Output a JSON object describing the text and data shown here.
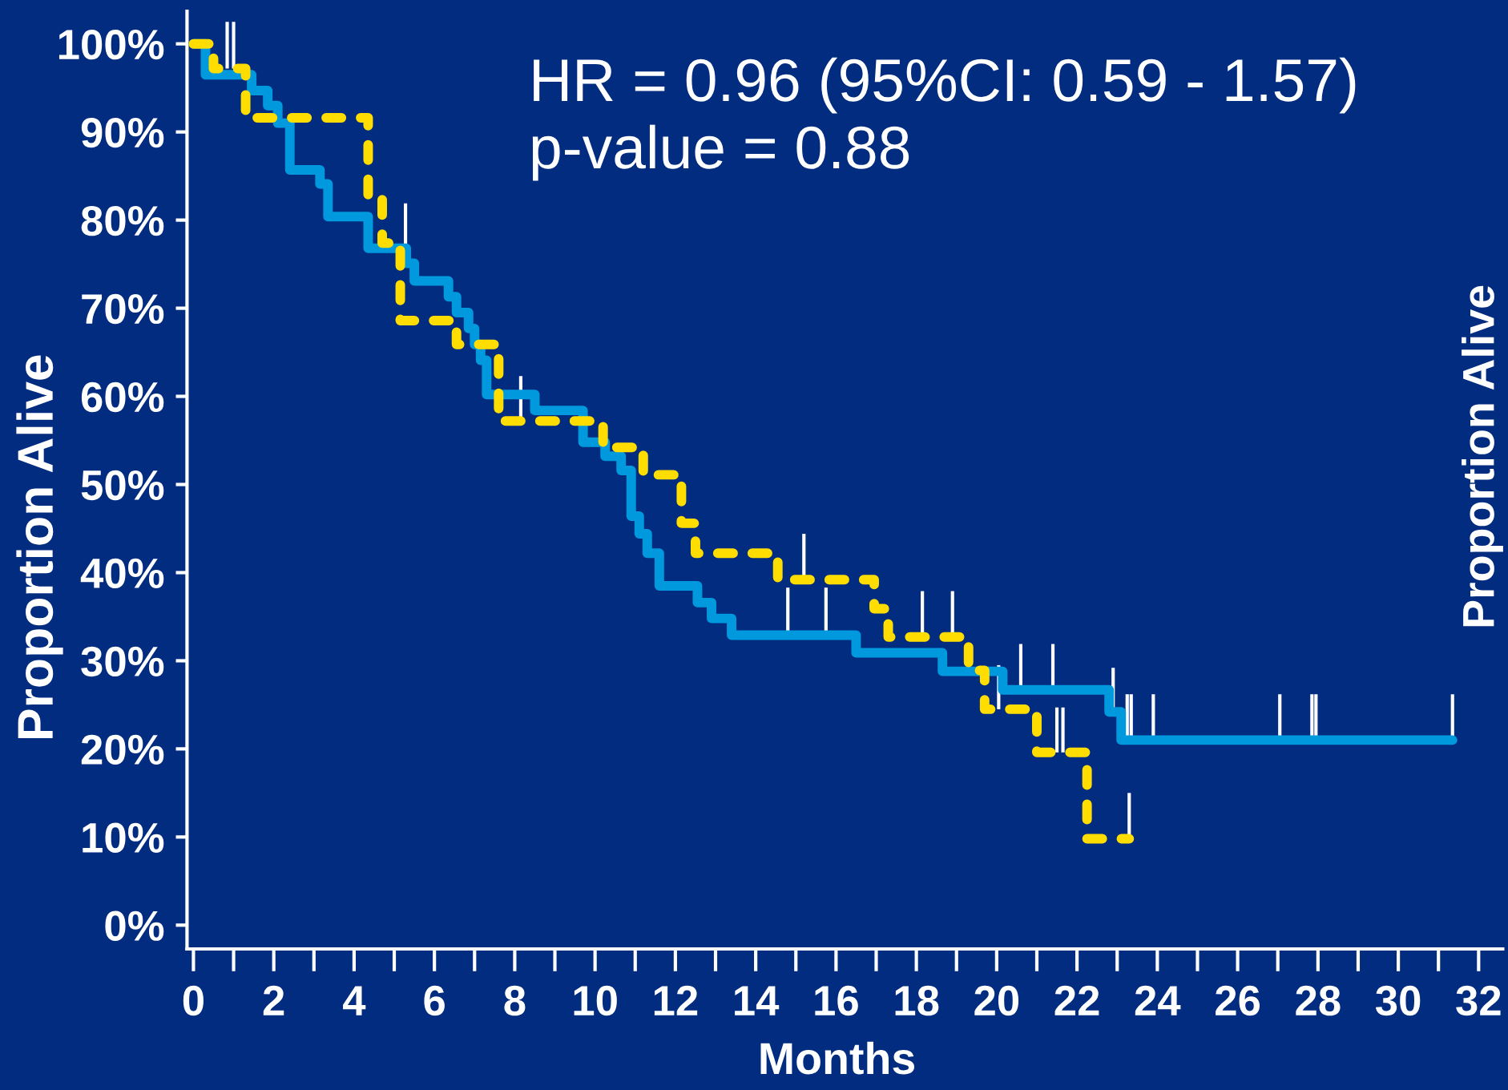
{
  "chart_data": {
    "type": "step",
    "xlabel": "Months",
    "ylabel": "Proportion Alive",
    "annotations": [
      "HR = 0.96 (95%CI: 0.59 - 1.57)",
      "p-value = 0.88",
      "Proportion Alive"
    ],
    "xlim": [
      -0.16,
      32.6
    ],
    "xticks": [
      0,
      {
        "value": 1,
        "label": null
      },
      2,
      {
        "value": 3,
        "label": null
      },
      4,
      {
        "value": 5,
        "label": null
      },
      6,
      {
        "value": 7,
        "label": null
      },
      8,
      {
        "value": 9,
        "label": null
      },
      10,
      {
        "value": 11,
        "label": null
      },
      12,
      {
        "value": 13,
        "label": null
      },
      14,
      {
        "value": 15,
        "label": null
      },
      16,
      {
        "value": 17,
        "label": null
      },
      18,
      {
        "value": 19,
        "label": null
      },
      20,
      {
        "value": 21,
        "label": null
      },
      22,
      {
        "value": 23,
        "label": null
      },
      24,
      {
        "value": 25,
        "label": null
      },
      26,
      {
        "value": 27,
        "label": null
      },
      28,
      {
        "value": 29,
        "label": null
      },
      30,
      {
        "value": 31,
        "label": null
      },
      32
    ],
    "ylim": [
      -2.7,
      103.7
    ],
    "yticks": [
      {
        "value": 0,
        "label": "0%"
      },
      {
        "value": 10,
        "label": "10%"
      },
      {
        "value": 20,
        "label": "20%"
      },
      {
        "value": 30,
        "label": "30%"
      },
      {
        "value": 40,
        "label": "40%"
      },
      {
        "value": 50,
        "label": "50%"
      },
      {
        "value": 60,
        "label": "60%"
      },
      {
        "value": 70,
        "label": "70%"
      },
      {
        "value": 80,
        "label": "80%"
      },
      {
        "value": 90,
        "label": "90%"
      },
      {
        "value": 100,
        "label": "100%"
      }
    ],
    "series": [
      {
        "color": "#0099dd",
        "line_style": "solid",
        "x": [
          0,
          0.3,
          1.45,
          1.85,
          2.1,
          2.4,
          3.15,
          3.35,
          4.35,
          5.28,
          5.3,
          5.5,
          6.35,
          6.55,
          6.85,
          7.0,
          7.15,
          7.3,
          8.5,
          9.7,
          10.25,
          10.65,
          10.9,
          11.1,
          11.3,
          11.6,
          12.55,
          12.9,
          13.4,
          14.8,
          15.75,
          16.5,
          18.65,
          20.15,
          20.6,
          21.4,
          22.8,
          22.9,
          23.1,
          23.25,
          23.35,
          23.9,
          27.05,
          27.85,
          27.95,
          31.35
        ],
        "values": [
          100,
          96.5,
          94.7,
          93.0,
          91.0,
          85.7,
          84.1,
          80.4,
          76.8,
          76.8,
          75.1,
          73.1,
          71.3,
          69.5,
          67.7,
          65.9,
          64.1,
          60.2,
          58.4,
          54.8,
          53.2,
          51.6,
          46.4,
          44.4,
          42.2,
          38.5,
          36.6,
          34.8,
          32.9,
          32.9,
          32.9,
          30.9,
          28.8,
          26.7,
          26.7,
          26.7,
          24.2,
          24.2,
          21.0,
          21.0,
          21.0,
          21.0,
          21.0,
          21.0,
          21.0,
          21.0
        ],
        "errors": [
          null,
          null,
          null,
          null,
          null,
          null,
          null,
          null,
          null,
          [
            76.8,
            81.9
          ],
          null,
          null,
          null,
          null,
          null,
          null,
          null,
          null,
          null,
          null,
          null,
          null,
          null,
          null,
          null,
          null,
          null,
          null,
          null,
          [
            32.9,
            38.3
          ],
          [
            32.9,
            38.3
          ],
          null,
          null,
          null,
          [
            26.7,
            31.9
          ],
          [
            26.7,
            31.9
          ],
          null,
          [
            24.2,
            29.2
          ],
          null,
          [
            21.0,
            26.2
          ],
          [
            21.0,
            26.2
          ],
          [
            21.0,
            26.2
          ],
          [
            21.0,
            26.2
          ],
          [
            21.0,
            26.2
          ],
          [
            21.0,
            26.2
          ],
          [
            21.0,
            26.2
          ]
        ]
      },
      {
        "color": "#ffdd00",
        "line_style": "dashed",
        "x": [
          0,
          0.5,
          0.84,
          1.0,
          1.3,
          4.35,
          4.7,
          5.15,
          6.55,
          7.6,
          8.15,
          10.2,
          11.2,
          12.15,
          12.5,
          14.55,
          15.2,
          16.95,
          17.3,
          18.15,
          18.9,
          19.3,
          19.7,
          20.05,
          21.0,
          21.5,
          21.65,
          22.25,
          23.3
        ],
        "values": [
          100,
          97.2,
          97.2,
          97.2,
          91.6,
          82.8,
          77.4,
          68.6,
          65.9,
          57.2,
          57.2,
          54.2,
          51.1,
          45.6,
          42.2,
          39.2,
          39.2,
          35.9,
          32.7,
          32.7,
          32.7,
          28.9,
          24.5,
          24.5,
          19.6,
          19.6,
          19.6,
          9.8,
          9.8
        ],
        "errors": [
          null,
          null,
          [
            97.2,
            102.5
          ],
          [
            97.2,
            102.5
          ],
          null,
          null,
          null,
          null,
          null,
          null,
          [
            57.2,
            62.3
          ],
          null,
          null,
          null,
          null,
          null,
          [
            39.2,
            44.4
          ],
          null,
          null,
          [
            32.7,
            37.9
          ],
          [
            32.7,
            37.9
          ],
          null,
          null,
          [
            24.5,
            29.5
          ],
          null,
          [
            19.6,
            24.7
          ],
          [
            19.6,
            24.7
          ],
          null,
          [
            9.8,
            15.0
          ]
        ]
      }
    ]
  }
}
